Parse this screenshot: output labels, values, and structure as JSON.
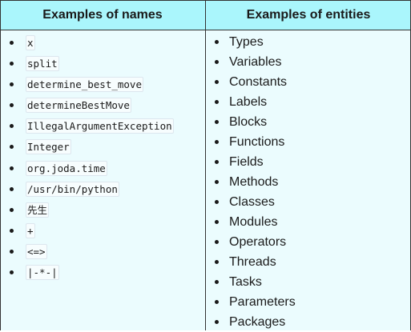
{
  "table": {
    "headers": {
      "names": "Examples of names",
      "entities": "Examples of entities"
    },
    "names": [
      "x",
      "split",
      "determine_best_move",
      "determineBestMove",
      "IllegalArgumentException",
      "Integer",
      "org.joda.time",
      "/usr/bin/python",
      "先生",
      "+",
      "<=>",
      "|-*-|"
    ],
    "entities": [
      "Types",
      "Variables",
      "Constants",
      "Labels",
      "Blocks",
      "Functions",
      "Fields",
      "Methods",
      "Classes",
      "Modules",
      "Operators",
      "Threads",
      "Tasks",
      "Parameters",
      "Packages"
    ]
  },
  "colors": {
    "header_bg": "#aaf6fc",
    "body_bg": "#ebfcfe",
    "border": "#333333"
  }
}
